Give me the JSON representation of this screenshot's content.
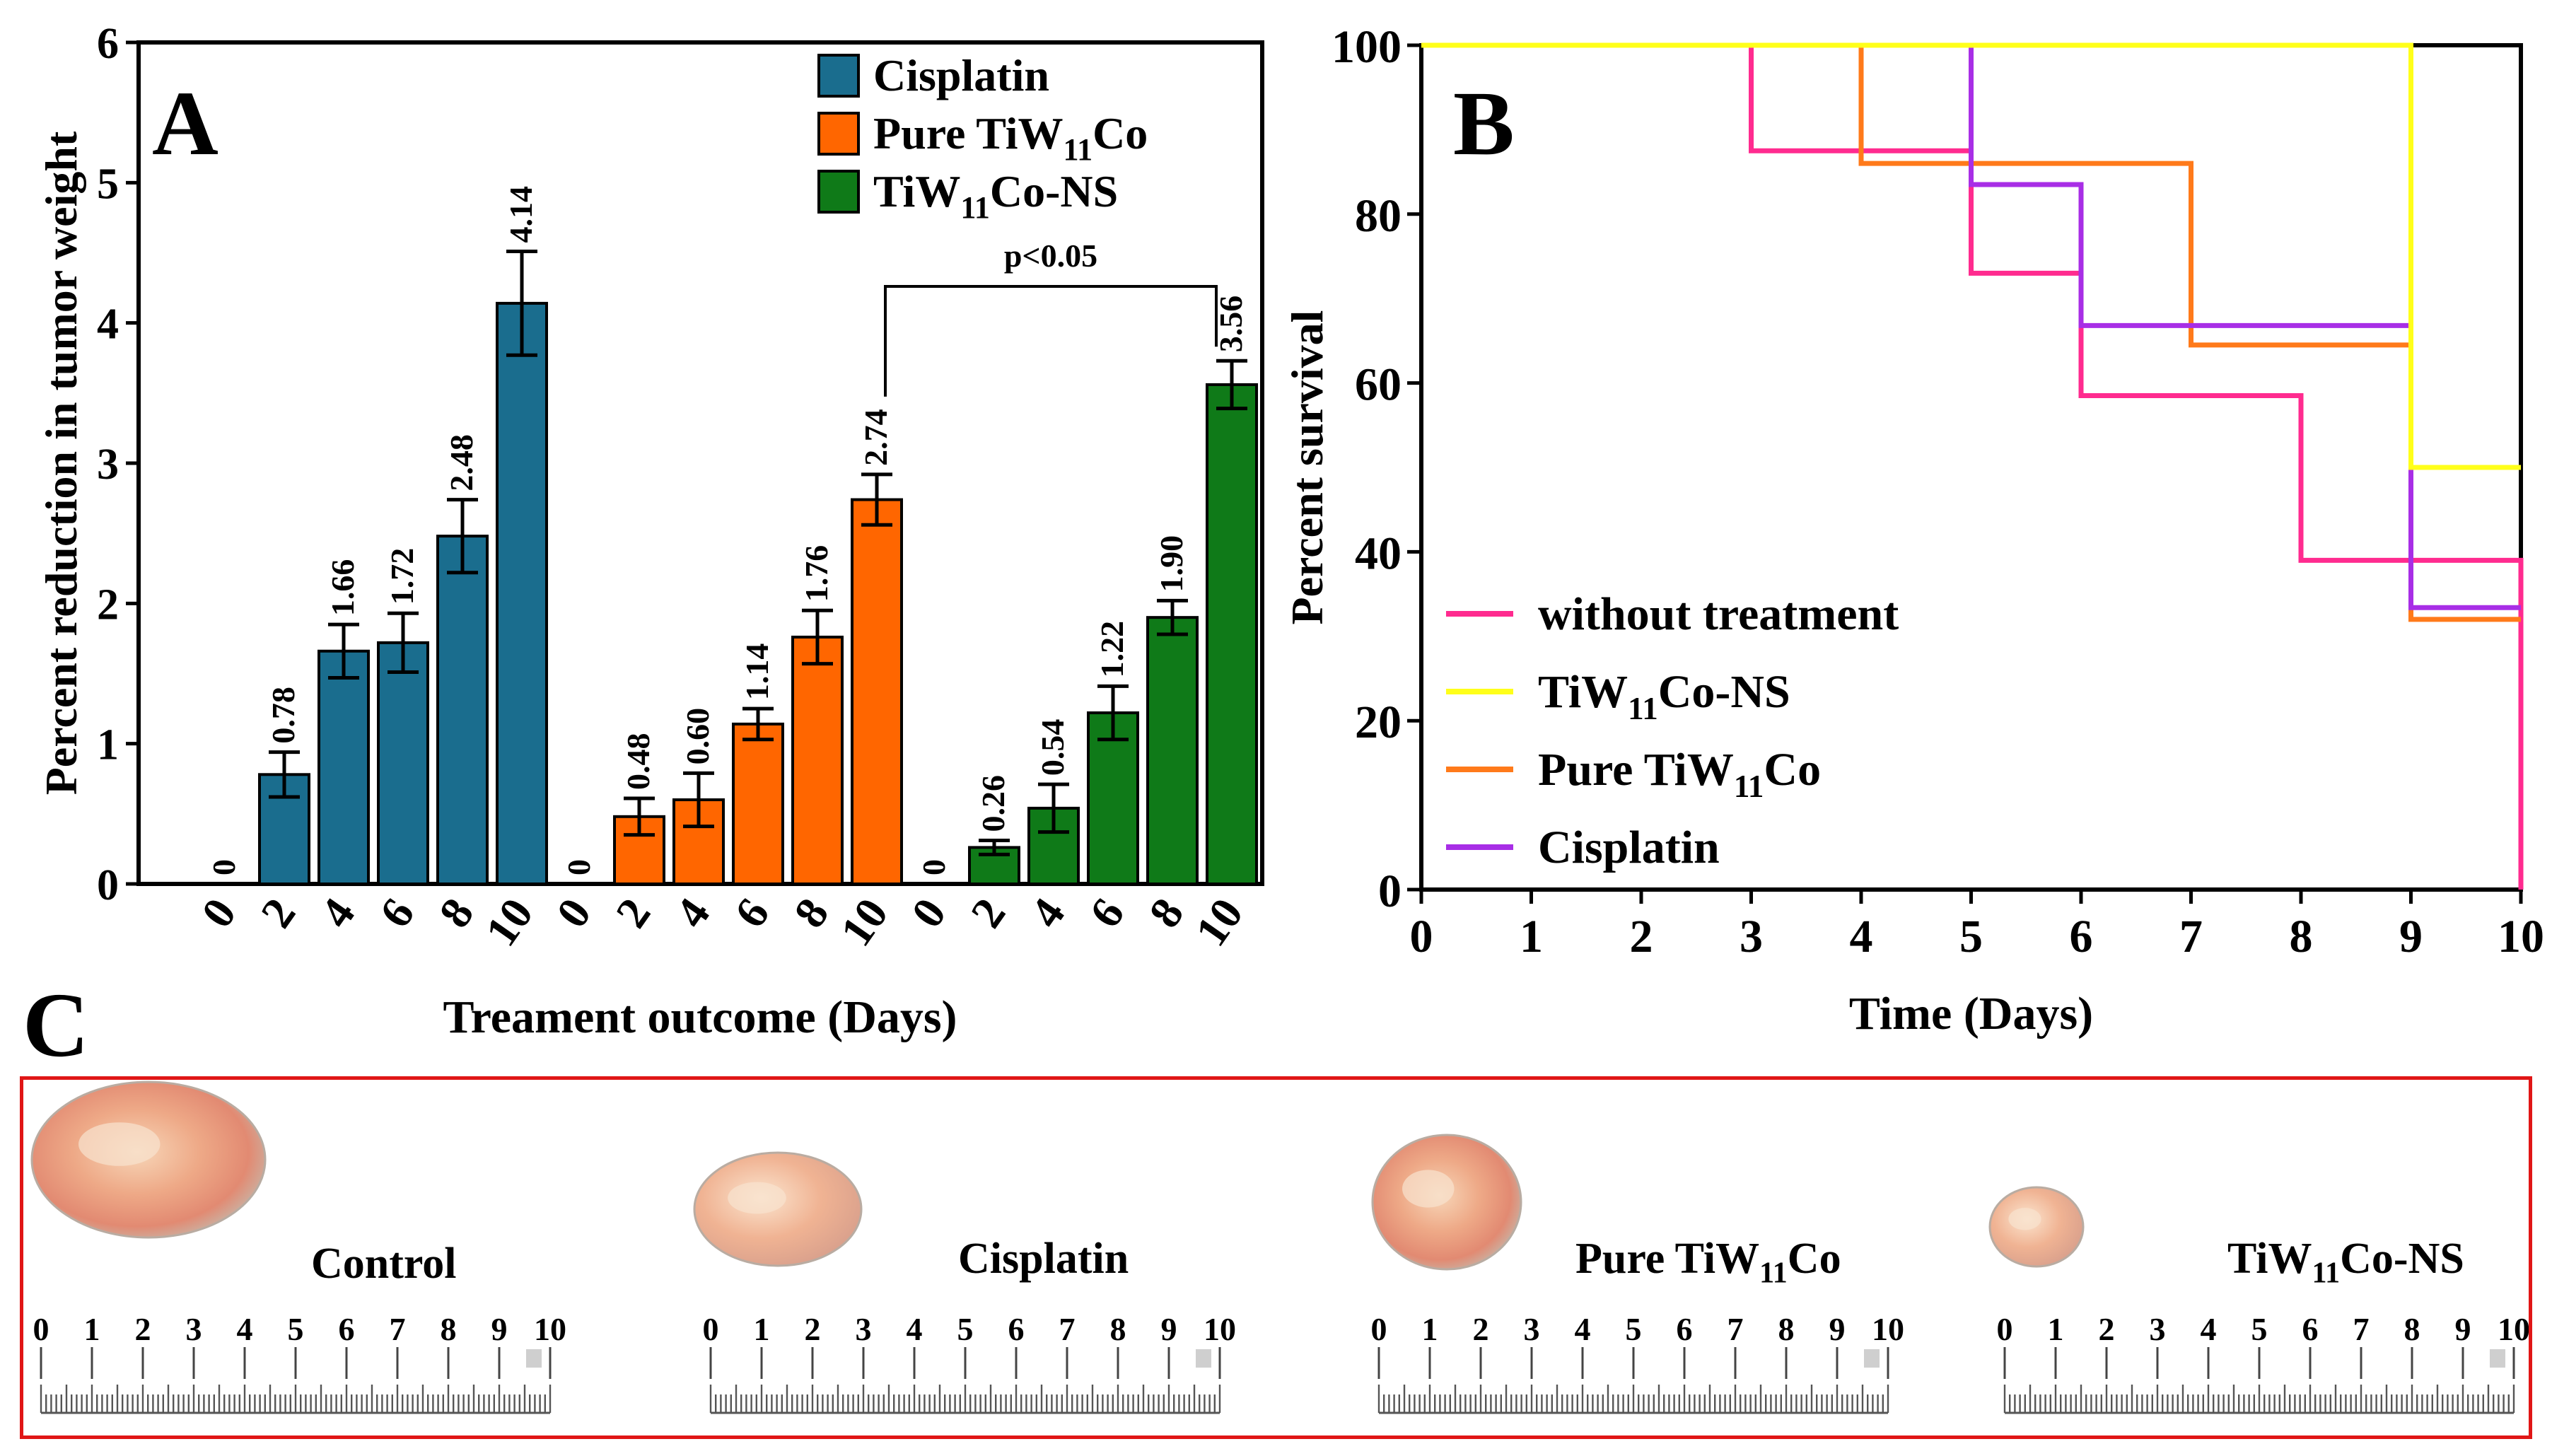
{
  "panels": {
    "a": "A",
    "b": "B",
    "c": "C"
  },
  "chart_data": [
    {
      "type": "bar",
      "ylabel": "Percent reduction in tumor weight",
      "xlabel": "Treament outcome (Days)",
      "ylim": [
        0,
        6
      ],
      "yticks": [
        "0",
        "1",
        "2",
        "3",
        "4",
        "5",
        "6"
      ],
      "categories": [
        "0",
        "2",
        "4",
        "6",
        "8",
        "10"
      ],
      "series": [
        {
          "name": "Cisplatin",
          "color": "#1a6d8e",
          "values": [
            0,
            0.78,
            1.66,
            1.72,
            2.48,
            4.14
          ],
          "errors": [
            0,
            0.16,
            0.19,
            0.21,
            0.26,
            0.37
          ],
          "labels": [
            "0",
            "0.78",
            "1.66",
            "1.72",
            "2.48",
            "4.14"
          ]
        },
        {
          "name": "Pure TiW",
          "name_sub": "11",
          "name_suffix": "Co",
          "color": "#ff6600",
          "values": [
            0,
            0.48,
            0.6,
            1.14,
            1.76,
            2.74
          ],
          "errors": [
            0,
            0.13,
            0.19,
            0.11,
            0.19,
            0.18
          ],
          "labels": [
            "0",
            "0.48",
            "0.60",
            "1.14",
            "1.76",
            "2.74"
          ]
        },
        {
          "name": "TiW",
          "name_sub": "11",
          "name_suffix": "Co-NS",
          "color": "#0f7a18",
          "values": [
            0,
            0.26,
            0.54,
            1.22,
            1.9,
            3.56
          ],
          "errors": [
            0,
            0.05,
            0.17,
            0.19,
            0.12,
            0.17
          ],
          "labels": [
            "0",
            "0.26",
            "0.54",
            "1.22",
            "1.90",
            "3.56"
          ]
        }
      ],
      "annotation": "p<0.05",
      "legend": "top-right"
    },
    {
      "type": "line",
      "step": true,
      "ylabel": "Percent survival",
      "xlabel": "Time (Days)",
      "xlim": [
        0,
        10
      ],
      "ylim": [
        0,
        100
      ],
      "xticks": [
        "0",
        "1",
        "2",
        "3",
        "4",
        "5",
        "6",
        "7",
        "8",
        "9",
        "10"
      ],
      "yticks": [
        "0",
        "20",
        "40",
        "60",
        "80",
        "100"
      ],
      "legend": "bottom-left",
      "series": [
        {
          "name": "without treatment",
          "color": "#ff2b8f",
          "points": [
            [
              0,
              100
            ],
            [
              3,
              100
            ],
            [
              3,
              87.5
            ],
            [
              5,
              87.5
            ],
            [
              5,
              73
            ],
            [
              6,
              73
            ],
            [
              6,
              58.5
            ],
            [
              8,
              58.5
            ],
            [
              8,
              39
            ],
            [
              10,
              39
            ],
            [
              10,
              0
            ]
          ]
        },
        {
          "name": "TiW",
          "name_sub": "11",
          "name_suffix": "Co-NS",
          "color": "#ffff1a",
          "points": [
            [
              0,
              100
            ],
            [
              9,
              100
            ],
            [
              9,
              50
            ],
            [
              10,
              50
            ]
          ]
        },
        {
          "name": "Pure TiW",
          "name_sub": "11",
          "name_suffix": "Co",
          "color": "#ff7a1a",
          "points": [
            [
              0,
              100
            ],
            [
              4,
              100
            ],
            [
              4,
              86
            ],
            [
              7,
              86
            ],
            [
              7,
              64.5
            ],
            [
              9,
              64.5
            ],
            [
              9,
              32
            ],
            [
              10,
              32
            ]
          ]
        },
        {
          "name": "Cisplatin",
          "color": "#a82ee6",
          "points": [
            [
              0,
              100
            ],
            [
              5,
              100
            ],
            [
              5,
              83.5
            ],
            [
              6,
              83.5
            ],
            [
              6,
              66.8
            ],
            [
              9,
              66.8
            ],
            [
              9,
              33.4
            ],
            [
              10,
              33.4
            ]
          ]
        }
      ]
    }
  ],
  "photos": [
    {
      "label": "Control",
      "ruler": [
        "0",
        "1",
        "2",
        "3",
        "4",
        "5",
        "6",
        "7",
        "8",
        "9",
        "10"
      ]
    },
    {
      "label": "Cisplatin",
      "ruler": [
        "0",
        "1",
        "2",
        "3",
        "4",
        "5",
        "6",
        "7",
        "8",
        "9",
        "10"
      ]
    },
    {
      "label": "Pure TiW",
      "label_sub": "11",
      "label_suffix": "Co",
      "ruler": [
        "0",
        "1",
        "2",
        "3",
        "4",
        "5",
        "6",
        "7",
        "8",
        "9",
        "10"
      ]
    },
    {
      "label": "TiW",
      "label_sub": "11",
      "label_suffix": "Co-NS",
      "ruler": [
        "0",
        "1",
        "2",
        "3",
        "4",
        "5",
        "6",
        "7",
        "8",
        "9",
        "10"
      ]
    }
  ]
}
